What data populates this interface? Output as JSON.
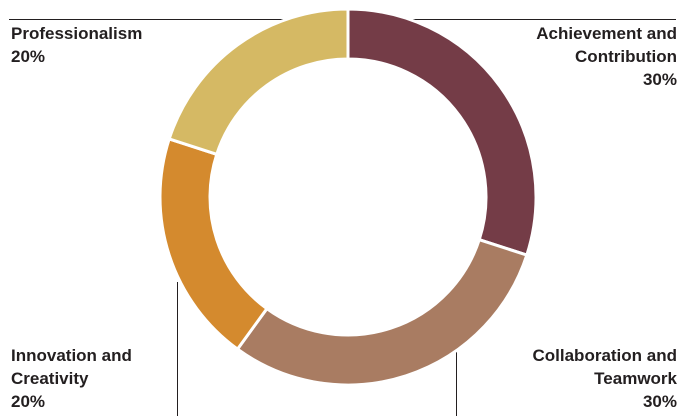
{
  "chart_data": {
    "type": "pie",
    "donut": true,
    "title": "",
    "categories": [
      "Achievement and Contribution",
      "Collaboration and Teamwork",
      "Innovation and Creativity",
      "Professionalism"
    ],
    "values": [
      30,
      30,
      20,
      20
    ],
    "colors": [
      "#743c47",
      "#a97c62",
      "#d48a2e",
      "#d5b964"
    ],
    "labels": {
      "achievement": {
        "line1": "Achievement and",
        "line2": "Contribution",
        "pct": "30%"
      },
      "collaboration": {
        "line1": "Collaboration and",
        "line2": "Teamwork",
        "pct": "30%"
      },
      "innovation": {
        "line1": "Innovation and",
        "line2": "Creativity",
        "pct": "20%"
      },
      "professionalism": {
        "line1": "Professionalism",
        "pct": "20%"
      }
    },
    "legend": "none",
    "grid": false
  }
}
